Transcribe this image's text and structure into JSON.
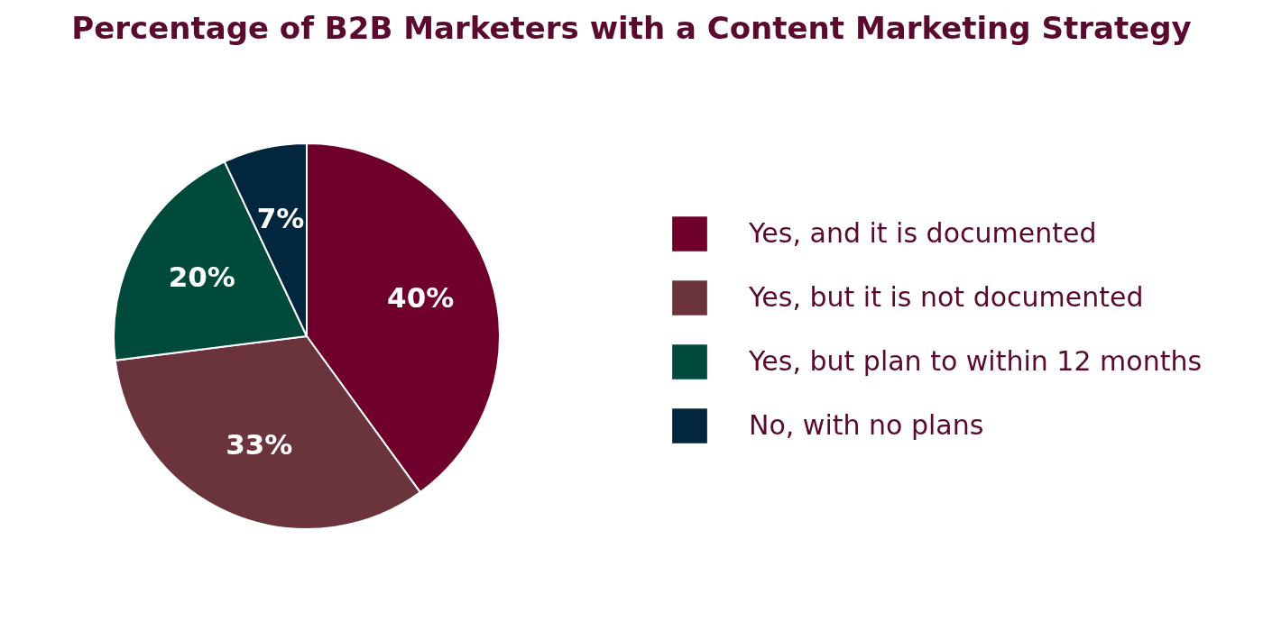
{
  "chart_data": {
    "type": "pie",
    "title": "Percentage of B2B Marketers with a Content Marketing Strategy",
    "categories": [
      "Yes, and it is documented",
      "Yes, but it is not documented",
      "Yes, but plan to within 12 months",
      "No, with no plans"
    ],
    "values": [
      40,
      33,
      20,
      7
    ],
    "value_labels": [
      "40%",
      "33%",
      "20%",
      "7%"
    ],
    "colors": [
      "#6e002b",
      "#6b333b",
      "#004a3c",
      "#03263f"
    ],
    "legend": "right"
  }
}
